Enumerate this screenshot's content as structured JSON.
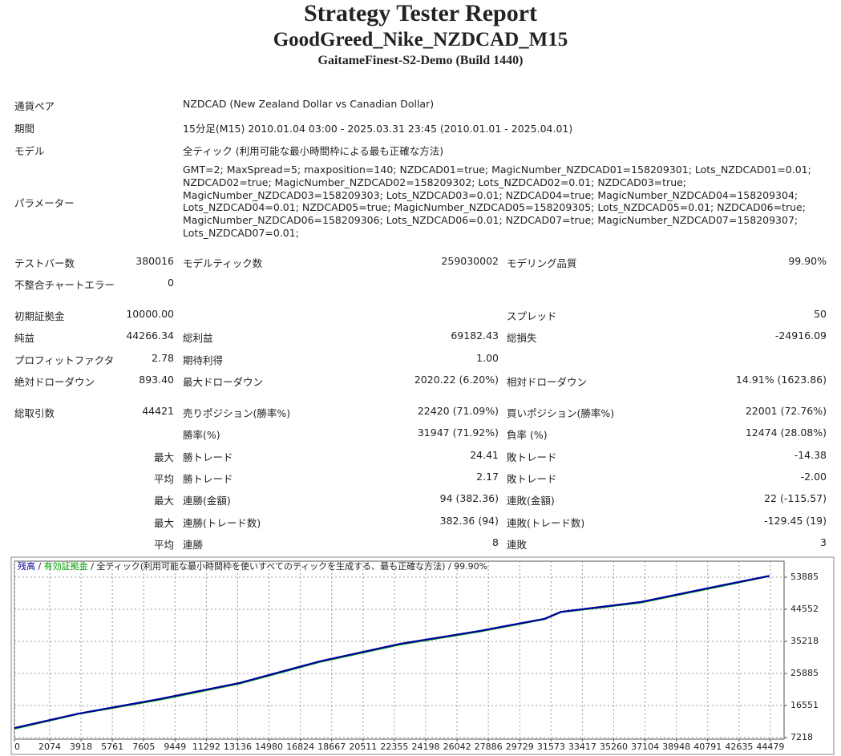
{
  "header": {
    "title": "Strategy Tester Report",
    "subtitle": "GoodGreed_Nike_NZDCAD_M15",
    "build": "GaitameFinest-S2-Demo (Build 1440)"
  },
  "info": [
    {
      "label": "通貨ペア",
      "lines": [
        "NZDCAD (New Zealand Dollar vs Canadian Dollar)"
      ]
    },
    {
      "label": "期間",
      "lines": [
        "15分足(M15) 2010.01.04 03:00 - 2025.03.31 23:45 (2010.01.01 - 2025.04.01)"
      ]
    },
    {
      "label": "モデル",
      "lines": [
        "全ティック (利用可能な最小時間枠による最も正確な方法)"
      ]
    },
    {
      "label": "パラメーター",
      "lines": [
        "GMT=2; MaxSpread=5; maxposition=140; NZDCAD01=true; MagicNumber_NZDCAD01=158209301; Lots_NZDCAD01=0.01;",
        "NZDCAD02=true; MagicNumber_NZDCAD02=158209302; Lots_NZDCAD02=0.01; NZDCAD03=true;",
        "MagicNumber_NZDCAD03=158209303; Lots_NZDCAD03=0.01; NZDCAD04=true; MagicNumber_NZDCAD04=158209304;",
        "Lots_NZDCAD04=0.01; NZDCAD05=true; MagicNumber_NZDCAD05=158209305; Lots_NZDCAD05=0.01; NZDCAD06=true;",
        "MagicNumber_NZDCAD06=158209306; Lots_NZDCAD06=0.01; NZDCAD07=true; MagicNumber_NZDCAD07=158209307;",
        "Lots_NZDCAD07=0.01;"
      ]
    }
  ],
  "stats": [
    [
      [
        "テストバー数",
        "380016",
        "モデルティック数",
        "259030002",
        "モデリング品質",
        "99.90%"
      ],
      [
        "不整合チャートエラー",
        "0",
        null,
        null,
        null,
        null
      ]
    ],
    [
      [
        "初期証拠金",
        "10000.00",
        null,
        null,
        "スプレッド",
        "50"
      ],
      [
        "純益",
        "44266.34",
        "総利益",
        "69182.43",
        "総損失",
        "-24916.09"
      ],
      [
        "プロフィットファクタ",
        "2.78",
        "期待利得",
        "1.00",
        null,
        null
      ],
      [
        "絶対ドローダウン",
        "893.40",
        "最大ドローダウン",
        "2020.22 (6.20%)",
        "相対ドローダウン",
        "14.91% (1623.86)"
      ]
    ],
    [
      [
        "総取引数",
        "44421",
        "売りポジション(勝率%)",
        "22420 (71.09%)",
        "買いポジション(勝率%)",
        "22001 (72.76%)"
      ],
      [
        null,
        null,
        "勝率(%)",
        "31947 (71.92%)",
        "負率 (%)",
        "12474 (28.08%)"
      ],
      [
        null,
        "最大",
        "勝トレード",
        "24.41",
        "敗トレード",
        "-14.38"
      ],
      [
        null,
        "平均",
        "勝トレード",
        "2.17",
        "敗トレード",
        "-2.00"
      ],
      [
        null,
        "最大",
        "連勝(金額)",
        "94 (382.36)",
        "連敗(金額)",
        "22 (-115.57)"
      ],
      [
        null,
        "最大",
        "連勝(トレード数)",
        "382.36 (94)",
        "連敗(トレード数)",
        "-129.45 (19)"
      ],
      [
        null,
        "平均",
        "連勝",
        "8",
        "連敗",
        "3"
      ]
    ]
  ],
  "chart_data": {
    "type": "line",
    "legend_separator": "/",
    "note": "/ 全ティック(利用可能な最小時間枠を使いすべてのティックを生成する、最も正確な方法) / 99.90%",
    "x": [
      0,
      3780,
      8500,
      13235,
      17960,
      22690,
      27420,
      31200,
      32150,
      36870,
      41600,
      44421
    ],
    "series": [
      {
        "name": "残高",
        "color": "#0000a0",
        "values": [
          10000,
          14200,
          18400,
          23100,
          29400,
          34500,
          38300,
          41800,
          43800,
          46700,
          51500,
          54266
        ]
      },
      {
        "name": "有効証拠金",
        "color": "#00a000",
        "values": [
          9700,
          14000,
          18100,
          22800,
          29100,
          34200,
          38000,
          41600,
          43600,
          46400,
          51200,
          54100
        ]
      }
    ],
    "xlim": [
      0,
      45284
    ],
    "ylim": [
      6751,
      58552
    ],
    "xticks": [
      0,
      2074,
      3918,
      5761,
      7605,
      9449,
      11292,
      13136,
      14980,
      16824,
      18667,
      20511,
      22355,
      24198,
      26042,
      27886,
      29729,
      31573,
      33417,
      35260,
      37104,
      38948,
      40791,
      42635,
      44479
    ],
    "yticks": [
      7218,
      16551,
      25885,
      35218,
      44552,
      53885
    ],
    "grid": true
  }
}
